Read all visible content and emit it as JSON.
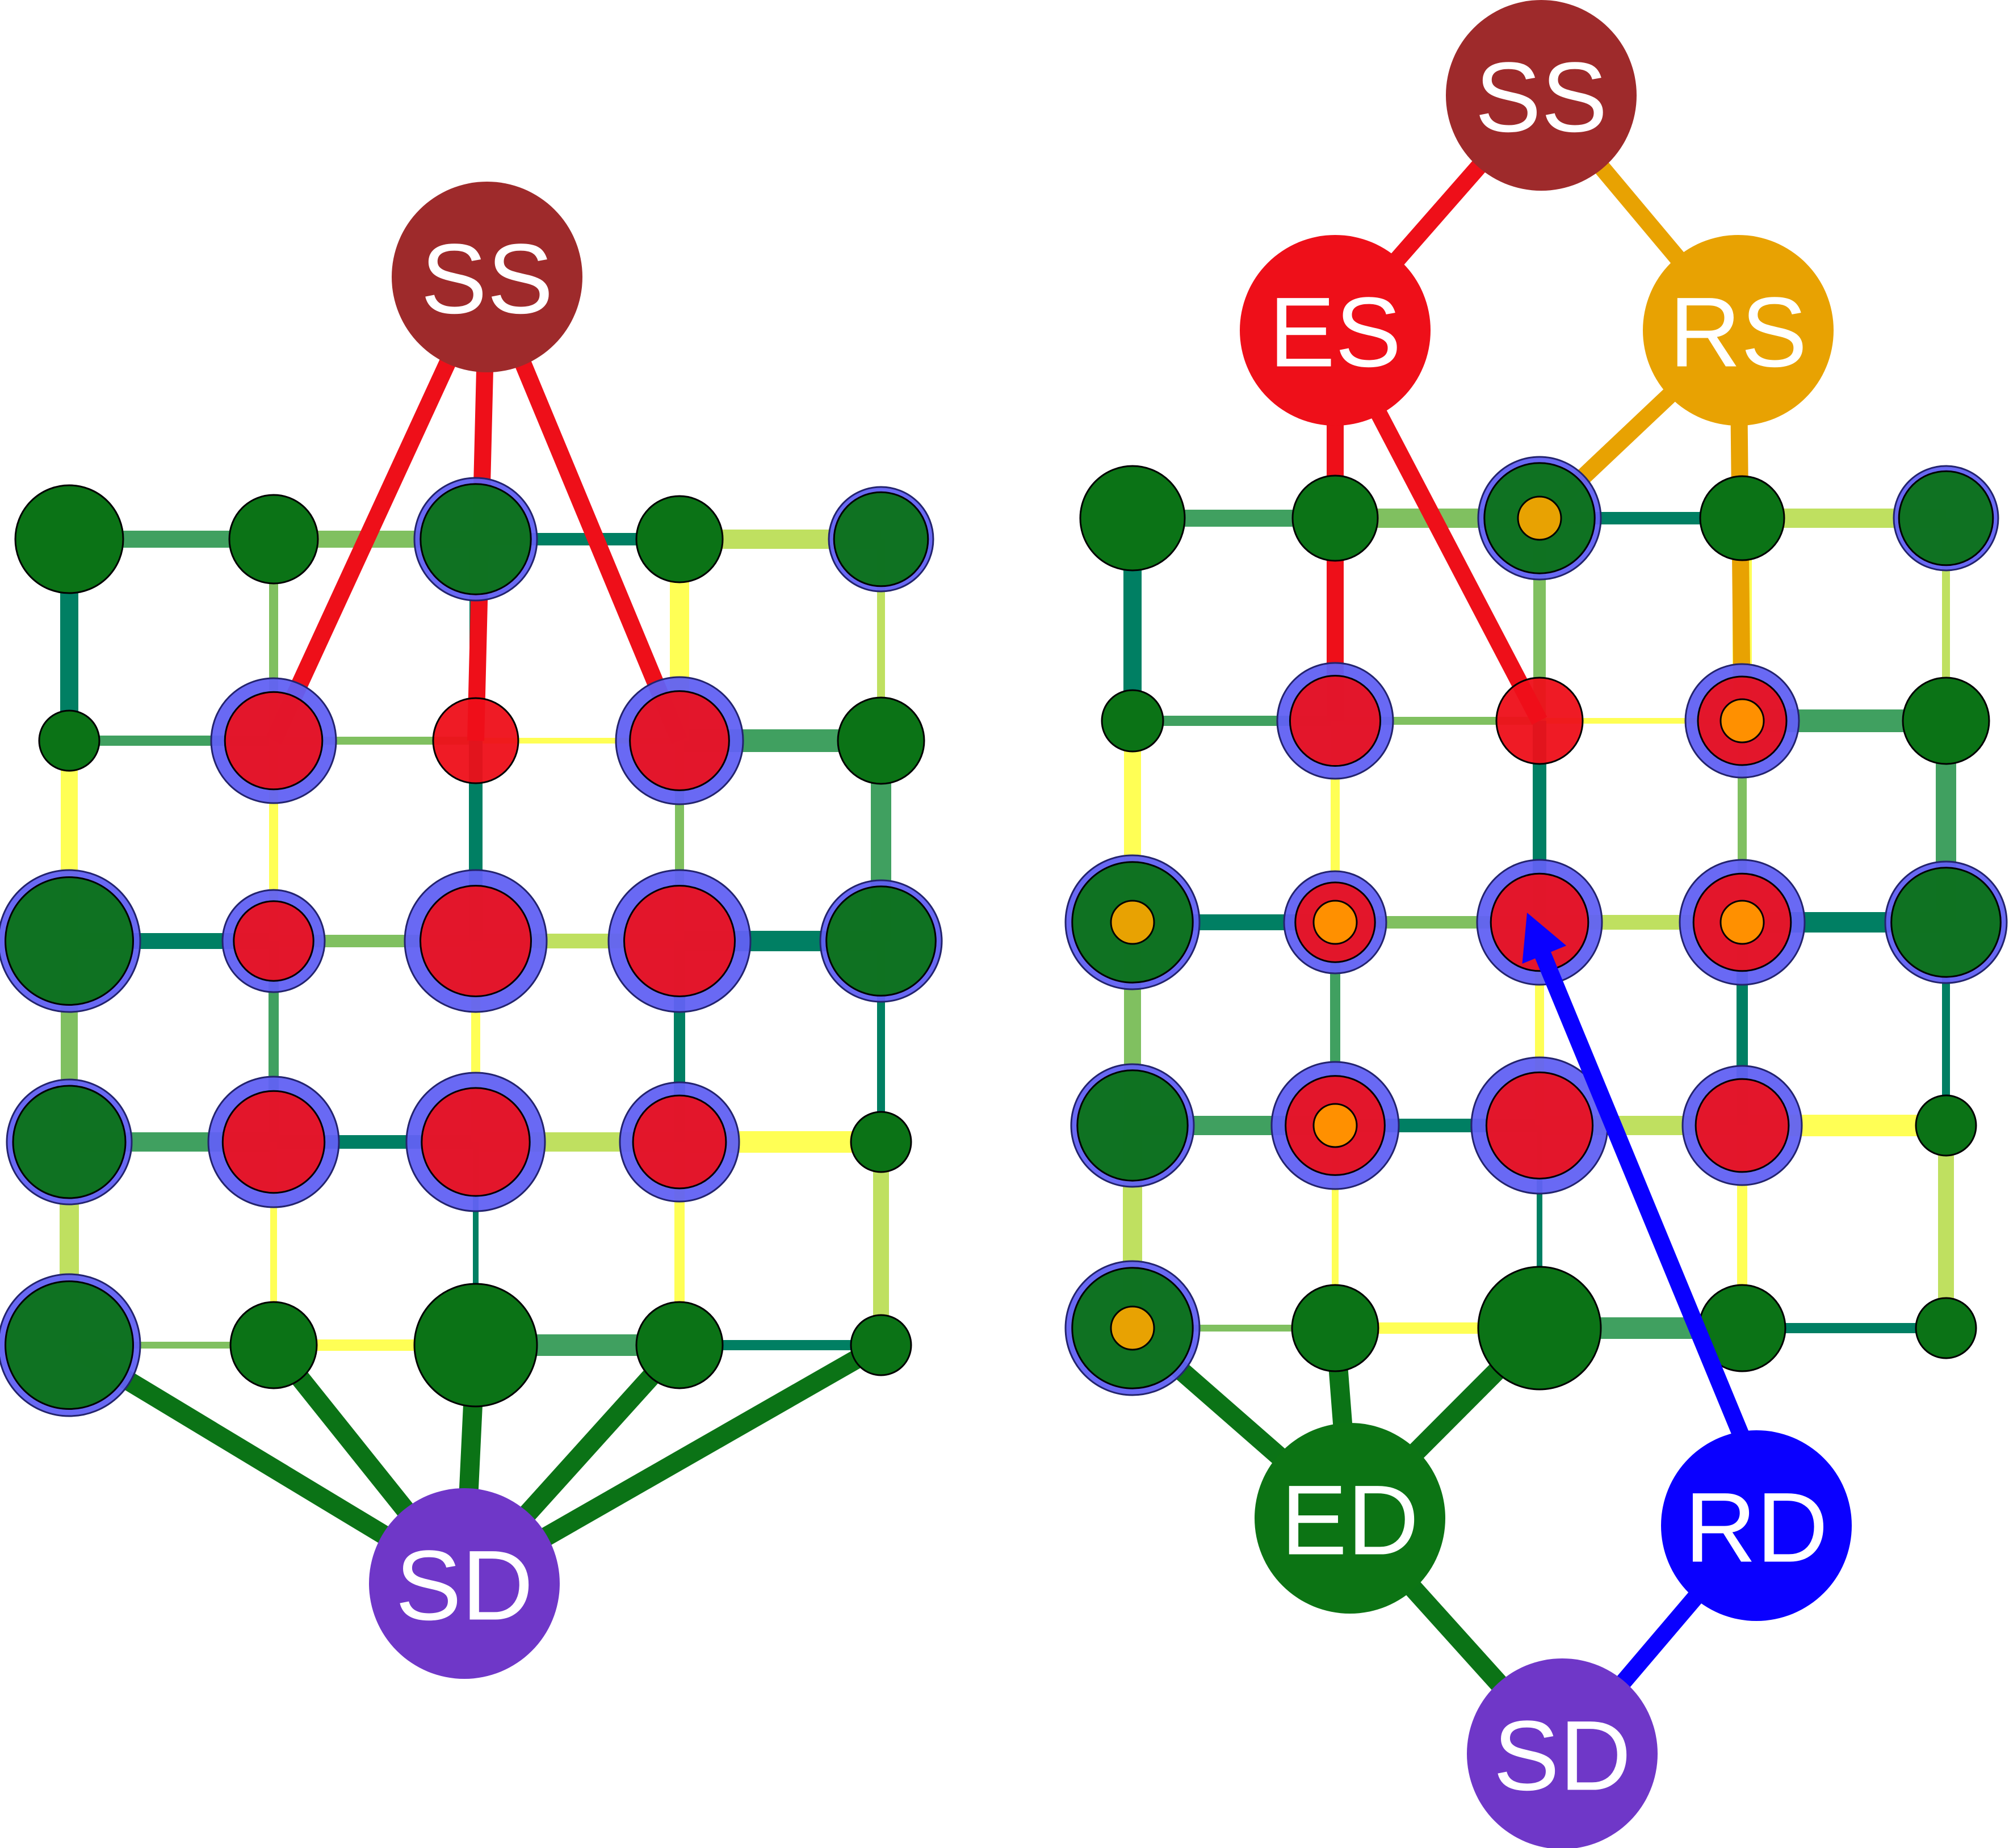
{
  "colors": {
    "super_source": "#9e2a2b",
    "excess_source": "#ee0f19",
    "residual_source": "#e8a202",
    "excess_sink": "#0c7414",
    "residual_sink": "#0a00ff",
    "super_sink": "#6f37c8",
    "grid_node": "#0b7316",
    "halo": "#6161f3",
    "inner_dot": "#ff9000"
  },
  "left_panel": {
    "super_source_label": "SS",
    "super_sink_label": "SD"
  },
  "right_panel": {
    "super_source_label": "SS",
    "excess_source_label": "ES",
    "residual_source_label": "RS",
    "excess_sink_label": "ED",
    "residual_sink_label": "RD",
    "super_sink_label": "SD"
  }
}
